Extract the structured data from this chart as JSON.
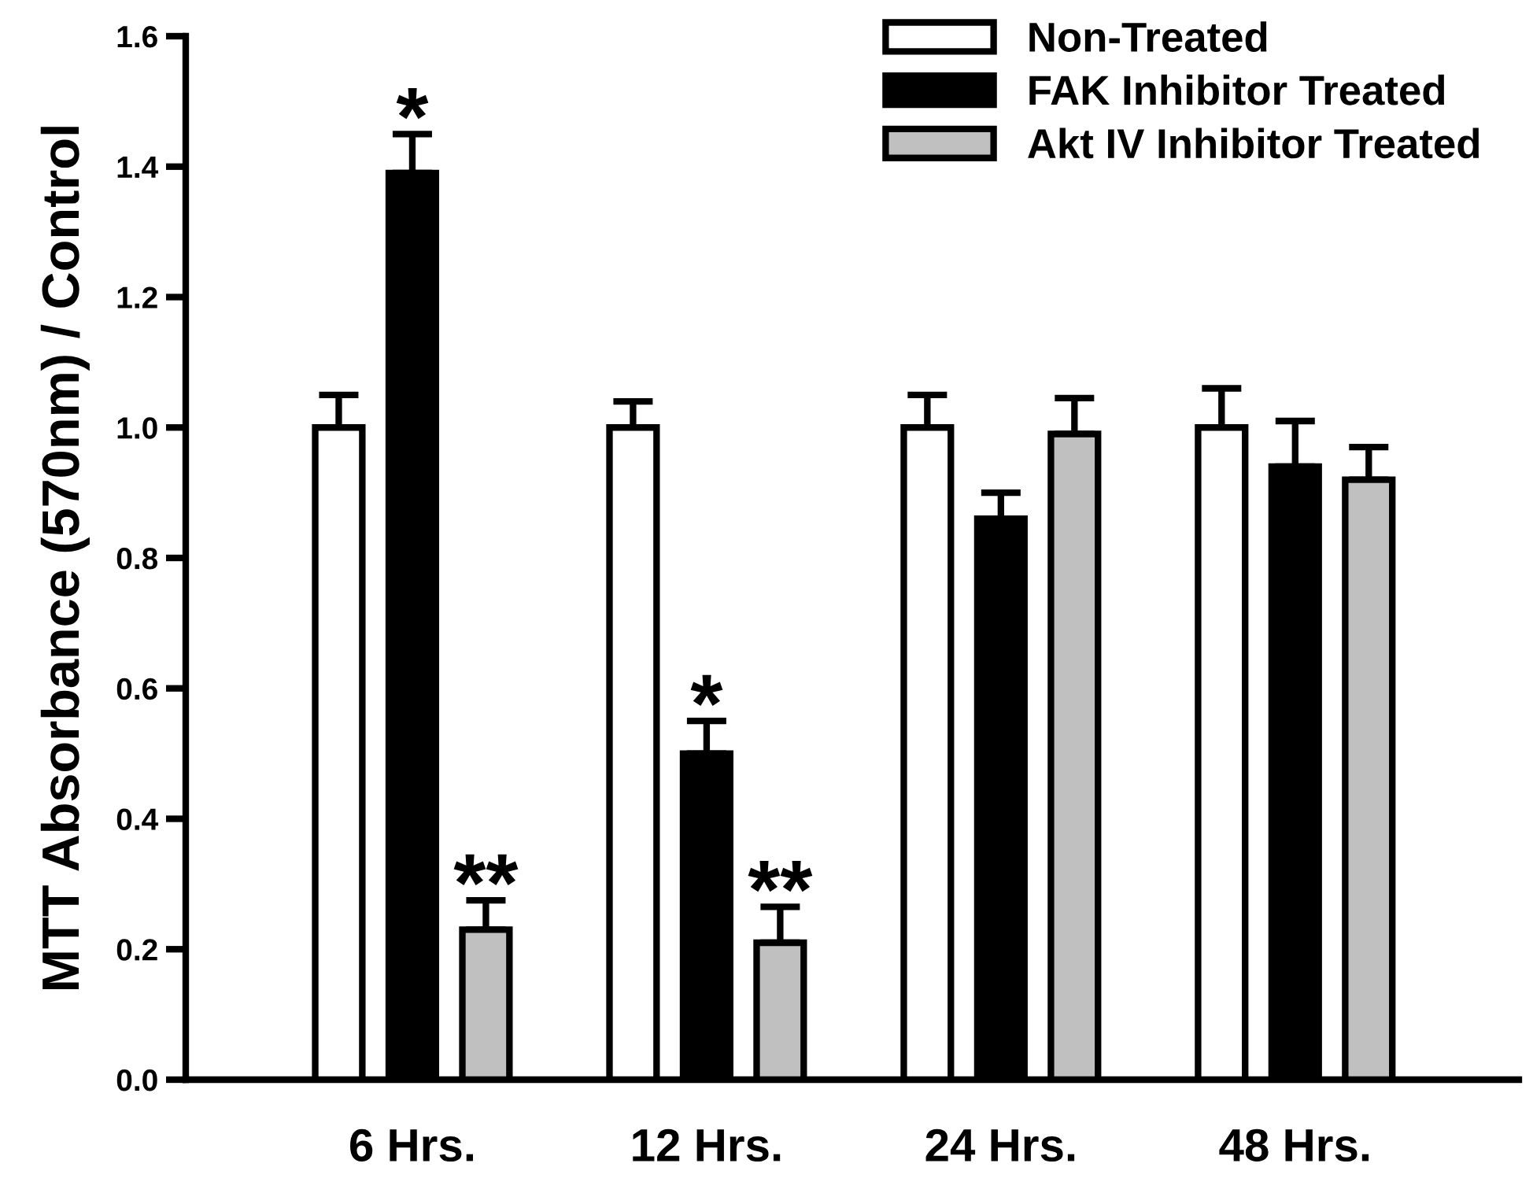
{
  "chart_data": {
    "type": "bar",
    "ylabel": "MTT Absorbance (570nm) / Control",
    "categories": [
      "6 Hrs.",
      "12 Hrs.",
      "24 Hrs.",
      "48 Hrs."
    ],
    "series": [
      {
        "name": "Non-Treated",
        "color": "#ffffff",
        "values": [
          1.0,
          1.0,
          1.0,
          1.0
        ],
        "errors": [
          [
            1.0,
            1.05
          ],
          [
            1.0,
            1.04
          ],
          [
            1.0,
            1.05
          ],
          [
            1.0,
            1.06
          ]
        ]
      },
      {
        "name": "FAK Inhibitor Treated",
        "color": "#000000",
        "values": [
          1.39,
          0.5,
          0.86,
          0.94
        ],
        "value_labels": [
          "*",
          "*",
          null,
          null
        ],
        "errors": [
          [
            1.39,
            1.45
          ],
          [
            0.5,
            0.55
          ],
          [
            0.86,
            0.9
          ],
          [
            0.94,
            1.01
          ]
        ]
      },
      {
        "name": "Akt IV Inhibitor Treated",
        "color": "#c0c0c0",
        "values": [
          0.23,
          0.21,
          0.99,
          0.92
        ],
        "value_labels": [
          "**",
          "**",
          null,
          null
        ],
        "errors": [
          [
            0.23,
            0.275
          ],
          [
            0.21,
            0.265
          ],
          [
            0.99,
            1.045
          ],
          [
            0.92,
            0.97
          ]
        ]
      }
    ],
    "ylim": [
      0,
      1.6
    ],
    "yticks": [
      {
        "value": 0,
        "label": "0.0"
      },
      0.2,
      0.4,
      0.6,
      0.8,
      {
        "value": 1,
        "label": "1.0"
      },
      1.2,
      1.4,
      1.6
    ],
    "legend": "top right",
    "grid": false
  }
}
